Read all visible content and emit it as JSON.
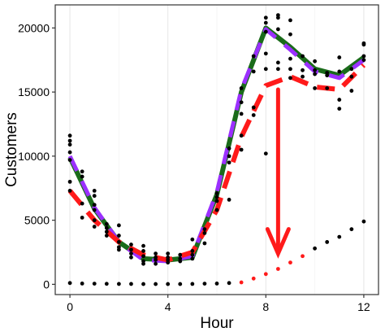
{
  "chart_data": {
    "type": "scatter+line",
    "xlabel": "Hour",
    "ylabel": "Customers",
    "xlim": [
      -0.6,
      12.6
    ],
    "ylim": [
      -800,
      21800
    ],
    "x_ticks": [
      0,
      4,
      8,
      12
    ],
    "y_ticks": [
      0,
      5000,
      10000,
      15000,
      20000
    ],
    "grid": true,
    "colors": {
      "green": "#1a6b1a",
      "purple": "#9b30ff",
      "red": "#ff1a1a",
      "points": "#000000"
    },
    "series": [
      {
        "style": "solid",
        "color": "green",
        "x": [
          0,
          1,
          2,
          3,
          4,
          5,
          6,
          7,
          8,
          9,
          10,
          11,
          12
        ],
        "y": [
          9900,
          5900,
          3300,
          2000,
          1900,
          2100,
          7000,
          15000,
          20000,
          18500,
          16800,
          16300,
          17700
        ]
      },
      {
        "style": "solid",
        "color": "purple",
        "x": [
          0,
          1,
          2,
          3,
          4,
          5,
          6,
          7,
          8,
          9,
          10,
          11,
          12
        ],
        "y": [
          10000,
          6000,
          3300,
          1900,
          1800,
          2200,
          7200,
          15200,
          19900,
          18300,
          16600,
          16100,
          17500
        ]
      },
      {
        "style": "dashed",
        "color": "red",
        "x": [
          0,
          1,
          2,
          3,
          4,
          5,
          6,
          7,
          8,
          9,
          10,
          11,
          12
        ],
        "y": [
          7300,
          5000,
          3300,
          2300,
          1900,
          2500,
          5800,
          11500,
          15500,
          16200,
          15400,
          15200,
          17100
        ]
      }
    ],
    "points": {
      "x": [
        0,
        0,
        0,
        0,
        0,
        0,
        0,
        0.5,
        0.5,
        0.5,
        0.5,
        1,
        1,
        1,
        1,
        1,
        1,
        1.5,
        1.5,
        1.5,
        1.5,
        2,
        2,
        2,
        2,
        2,
        2.5,
        2.5,
        2.5,
        2.5,
        3,
        3,
        3,
        3,
        3,
        3.5,
        3.5,
        3.5,
        3.5,
        4,
        4,
        4,
        4,
        4.5,
        4.5,
        4.5,
        5,
        5,
        5,
        5,
        5.5,
        5.5,
        5.5,
        6,
        6,
        6,
        6,
        6.5,
        6.5,
        6.5,
        6.5,
        7,
        7,
        7,
        7,
        7,
        7.5,
        7.5,
        7.5,
        7.5,
        8,
        8,
        8,
        8,
        8,
        8,
        8.5,
        8.5,
        8.5,
        8.5,
        8.5,
        9,
        9,
        9,
        9,
        9,
        9.5,
        9.5,
        9.5,
        10,
        10,
        10,
        10,
        10.5,
        10.5,
        10.5,
        11,
        11,
        11,
        11,
        11.5,
        11.5,
        11.5,
        12,
        12,
        12,
        12
      ],
      "y": [
        11600,
        11200,
        10900,
        10300,
        9700,
        8000,
        7300,
        8800,
        8400,
        6300,
        5200,
        7300,
        6900,
        6200,
        5800,
        5000,
        4500,
        4700,
        4400,
        4100,
        3800,
        4600,
        3800,
        3300,
        2900,
        2700,
        3100,
        2700,
        2400,
        2100,
        3000,
        2600,
        2200,
        1800,
        1600,
        2400,
        2100,
        1900,
        1600,
        2400,
        2100,
        1900,
        1700,
        2300,
        2000,
        1800,
        3500,
        2600,
        2300,
        2000,
        4300,
        4000,
        3200,
        7100,
        6800,
        6500,
        5800,
        10600,
        10000,
        9500,
        6600,
        15300,
        14200,
        13300,
        11600,
        10500,
        17800,
        16600,
        13800,
        13200,
        20800,
        20400,
        19700,
        18000,
        16800,
        10200,
        21000,
        20800,
        19900,
        17300,
        16800,
        20600,
        19500,
        17600,
        16800,
        16100,
        17800,
        16700,
        16200,
        17400,
        16700,
        16400,
        15300,
        16500,
        16300,
        15300,
        17700,
        16600,
        14400,
        13700,
        16800,
        16200,
        15100,
        18800,
        18700,
        17800,
        17500
      ]
    },
    "point_series_red": {
      "x": [
        7,
        7.5,
        8,
        8.5,
        9,
        9.5
      ],
      "y": [
        150,
        450,
        800,
        1200,
        1700,
        2200
      ]
    },
    "point_series_black_low": {
      "x": [
        0,
        0.5,
        1,
        1.5,
        2,
        2.5,
        3,
        3.5,
        4,
        4.5,
        5,
        5.5,
        6,
        6.5,
        10,
        10.5,
        11,
        11.5,
        12
      ],
      "y": [
        100,
        60,
        50,
        40,
        30,
        30,
        20,
        20,
        20,
        20,
        30,
        50,
        60,
        100,
        2800,
        3300,
        3700,
        4300,
        4900
      ]
    },
    "annotation": {
      "type": "arrow",
      "color": "red",
      "x": 8.5,
      "y_from": 15200,
      "y_to": 2400
    }
  }
}
